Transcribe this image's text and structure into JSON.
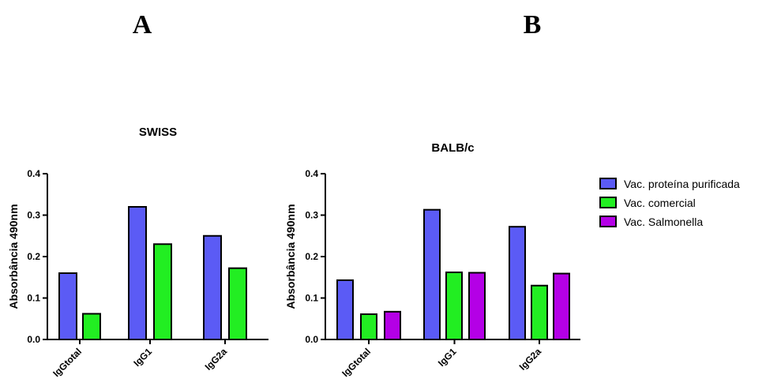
{
  "panel_labels": [
    "A",
    "B"
  ],
  "colors": {
    "Vac. proteína purificada": "#5b5bf5",
    "Vac. comercial": "#22ee22",
    "Vac. Salmonella": "#b400e6"
  },
  "legend": {
    "items": [
      "Vac. proteína purificada",
      "Vac. comercial",
      "Vac. Salmonella"
    ],
    "placement": "right"
  },
  "chart_data": [
    {
      "type": "bar",
      "title": "SWISS",
      "ylabel": "Absorbância 490nm",
      "xlabel": "",
      "ylim": [
        0,
        0.4
      ],
      "yticks": [
        "0.0",
        "0.1",
        "0.2",
        "0.3",
        "0.4"
      ],
      "categories": [
        "IgGtotal",
        "IgG1",
        "IgG2a"
      ],
      "series": [
        {
          "name": "Vac. proteína purificada",
          "values": [
            0.16,
            0.32,
            0.25
          ]
        },
        {
          "name": "Vac. comercial",
          "values": [
            0.062,
            0.23,
            0.172
          ]
        }
      ]
    },
    {
      "type": "bar",
      "title": "BALB/c",
      "ylabel": "Absorbância 490nm",
      "xlabel": "",
      "ylim": [
        0,
        0.4
      ],
      "yticks": [
        "0.0",
        "0.1",
        "0.2",
        "0.3",
        "0.4"
      ],
      "categories": [
        "IgGtotal",
        "IgG1",
        "IgG2a"
      ],
      "series": [
        {
          "name": "Vac. proteína purificada",
          "values": [
            0.143,
            0.313,
            0.272
          ]
        },
        {
          "name": "Vac. comercial",
          "values": [
            0.061,
            0.162,
            0.13
          ]
        },
        {
          "name": "Vac. Salmonella",
          "values": [
            0.067,
            0.161,
            0.159
          ]
        }
      ]
    }
  ]
}
